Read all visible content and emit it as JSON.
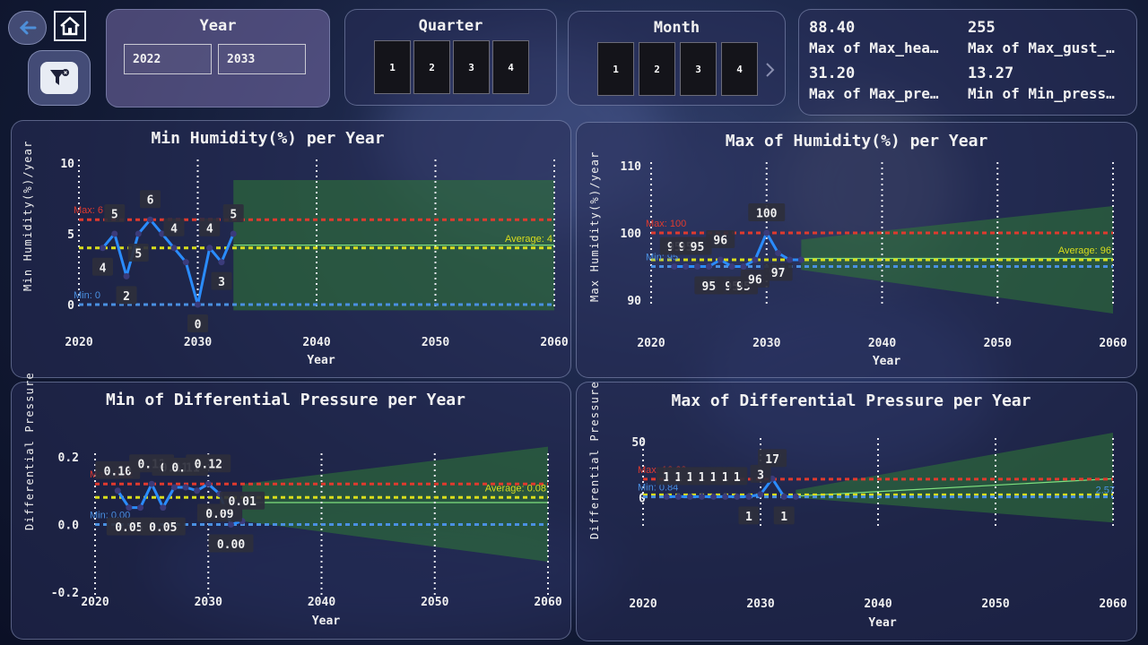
{
  "nav": {
    "back_icon": "back-arrow-icon",
    "home_icon": "home-icon",
    "filter_reset_icon": "clear-filter-icon"
  },
  "slicers": {
    "year": {
      "title": "Year",
      "from": "2022",
      "to": "2033"
    },
    "quarter": {
      "title": "Quarter",
      "tiles": [
        "1",
        "2",
        "3",
        "4"
      ]
    },
    "month": {
      "title": "Month",
      "tiles": [
        "1",
        "2",
        "3",
        "4"
      ],
      "more_icon": "chevron-right-icon"
    }
  },
  "kpis": [
    {
      "value": "88.40",
      "label": "Max of Max_hea…"
    },
    {
      "value": "255",
      "label": "Max of Max_gust_…"
    },
    {
      "value": "31.20",
      "label": "Max of Max_pre…"
    },
    {
      "value": "13.27",
      "label": "Min of Min_press…"
    }
  ],
  "colors": {
    "max_line": "#e03a2e",
    "avg_line": "#d9dd1c",
    "min_line": "#4a90e2",
    "series": "#2a8cff",
    "forecast_band": "#2f7a34",
    "forecast_line": "#7ee07f"
  },
  "chart_data": [
    {
      "type": "line",
      "title": "Min Humidity(%) per Year",
      "xlabel": "Year",
      "ylabel": "Min Humidity(%)/year",
      "xlim": [
        2020,
        2060
      ],
      "ylim": [
        0,
        10
      ],
      "x_ticks": [
        "2020",
        "2030",
        "2040",
        "2050",
        "2060"
      ],
      "y_ticks": [
        "10",
        "5",
        "0"
      ],
      "x": [
        2022,
        2023,
        2024,
        2025,
        2026,
        2027,
        2028,
        2029,
        2030,
        2031,
        2032,
        2033
      ],
      "series": [
        {
          "values": [
            4,
            5,
            2,
            5,
            6,
            5,
            4,
            3,
            0,
            4,
            3,
            5
          ]
        }
      ],
      "data_labels": [
        "4",
        "5",
        "2",
        "5",
        "6",
        "",
        "4",
        "",
        "0",
        "4",
        "3",
        "5"
      ],
      "reference_lines": {
        "max": {
          "label": "Max: 6",
          "value": 6
        },
        "average": {
          "label": "Average: 4",
          "value": 4
        },
        "min": {
          "label": "Min: 0",
          "value": 0
        }
      },
      "forecast": {
        "x_start": 2033,
        "x_end": 2060,
        "upper_start": 8.8,
        "upper_end": 8.8,
        "lower_start": -0.4,
        "lower_end": -0.4,
        "center_start": 4.2,
        "center_end": 4.2
      }
    },
    {
      "type": "line",
      "title": "Max of Humidity(%) per Year",
      "xlabel": "Year",
      "ylabel": "Max Humidity(%)/year",
      "xlim": [
        2020,
        2060
      ],
      "ylim": [
        90,
        110
      ],
      "x_ticks": [
        "2020",
        "2030",
        "2040",
        "2050",
        "2060"
      ],
      "y_ticks": [
        "110",
        "100",
        "90"
      ],
      "x": [
        2022,
        2023,
        2024,
        2025,
        2026,
        2027,
        2028,
        2029,
        2030,
        2031,
        2032,
        2033
      ],
      "series": [
        {
          "values": [
            95,
            95,
            95,
            95,
            96,
            95,
            95,
            96,
            100,
            97,
            96,
            96
          ]
        }
      ],
      "data_labels": [
        "95",
        "95",
        "95",
        "95",
        "96",
        "95",
        "95",
        "96",
        "100",
        "97",
        "",
        ""
      ],
      "reference_lines": {
        "max": {
          "label": "Max: 100",
          "value": 100
        },
        "average": {
          "label": "Average: 96",
          "value": 96
        },
        "min": {
          "label": "Min: 95",
          "value": 95
        }
      },
      "forecast": {
        "x_start": 2033,
        "x_end": 2060,
        "upper_start": 99,
        "upper_end": 104,
        "lower_start": 94.5,
        "lower_end": 88,
        "center_start": 96.2,
        "center_end": 96.2
      }
    },
    {
      "type": "line",
      "title": "Min of Differential Pressure per Year",
      "xlabel": "Year",
      "ylabel": "Differential Pressure",
      "xlim": [
        2020,
        2060
      ],
      "ylim": [
        -0.2,
        0.2
      ],
      "x_ticks": [
        "2020",
        "2030",
        "2040",
        "2050",
        "2060"
      ],
      "y_ticks": [
        "0.2",
        "0.0",
        "-0.2"
      ],
      "x": [
        2022,
        2023,
        2024,
        2025,
        2026,
        2027,
        2028,
        2029,
        2030,
        2031,
        2032,
        2033
      ],
      "series": [
        {
          "values": [
            0.1,
            0.05,
            0.05,
            0.12,
            0.05,
            0.11,
            0.11,
            0.1,
            0.12,
            0.09,
            0.0,
            0.01
          ]
        }
      ],
      "data_labels": [
        "0.10",
        "0.05",
        "",
        "0.12",
        "0.05",
        "0.11",
        "0.11",
        "",
        "0.12",
        "0.09",
        "0.00",
        "0.01"
      ],
      "reference_lines": {
        "max": {
          "label": "Max: 0.12",
          "value": 0.12
        },
        "average": {
          "label": "Average: 0.08",
          "value": 0.08
        },
        "min": {
          "label": "Min: 0.00",
          "value": 0.0
        }
      },
      "forecast": {
        "x_start": 2033,
        "x_end": 2060,
        "upper_start": 0.12,
        "upper_end": 0.23,
        "lower_start": 0.01,
        "lower_end": -0.11,
        "center_start": 0.065,
        "center_end": 0.065
      }
    },
    {
      "type": "line",
      "title": "Max of Differential Pressure per Year",
      "xlabel": "Year",
      "ylabel": "Differential Pressure",
      "xlim": [
        2020,
        2060
      ],
      "ylim": [
        -25,
        50
      ],
      "x_ticks": [
        "2020",
        "2030",
        "2040",
        "2050",
        "2060"
      ],
      "y_ticks": [
        "50",
        "0"
      ],
      "x": [
        2022,
        2023,
        2024,
        2025,
        2026,
        2027,
        2028,
        2029,
        2030,
        2031,
        2032,
        2033
      ],
      "series": [
        {
          "values": [
            1,
            1,
            1,
            1,
            1,
            1,
            1,
            1,
            3,
            17,
            1,
            1
          ]
        }
      ],
      "data_labels": [
        "1",
        "1",
        "1",
        "1",
        "1",
        "1",
        "1",
        "1",
        "3",
        "17",
        "1",
        ""
      ],
      "reference_lines": {
        "max": {
          "label": "Max: 16.60",
          "value": 16.6
        },
        "average": {
          "label": "",
          "value": 2.6
        },
        "min": {
          "label": "Min: 0.84",
          "value": 0.84
        }
      },
      "forecast": {
        "x_start": 2033,
        "x_end": 2060,
        "upper_start": 7,
        "upper_end": 58,
        "lower_start": 0,
        "lower_end": -22,
        "center_start": 1.5,
        "center_end": 17
      },
      "forecast_label": "2.57"
    }
  ]
}
